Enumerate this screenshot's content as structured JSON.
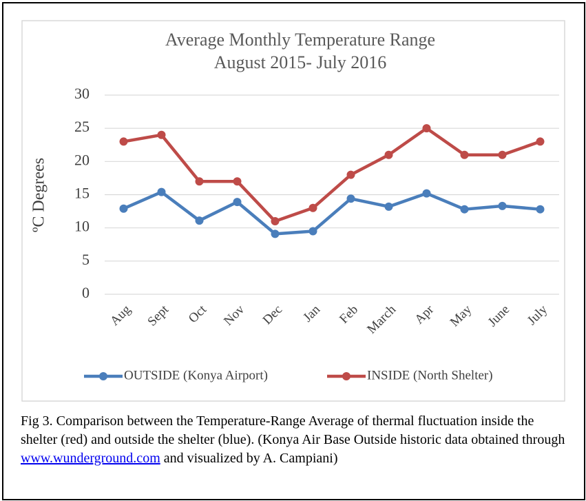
{
  "chart_data": {
    "type": "line",
    "title": [
      "Average Monthly Temperature Range",
      "August 2015- July 2016"
    ],
    "y_label": "ºC Degrees",
    "categories": [
      "Aug",
      "Sept",
      "Oct",
      "Nov",
      "Dec",
      "Jan",
      "Feb",
      "March",
      "Apr",
      "May",
      "June",
      "July"
    ],
    "series": [
      {
        "name": "OUTSIDE (Konya Airport)",
        "color": "#4a7ebb",
        "values": [
          12.9,
          15.4,
          11.1,
          13.9,
          9.1,
          9.5,
          14.4,
          13.2,
          15.2,
          12.8,
          13.3,
          12.8
        ]
      },
      {
        "name": "INSIDE (North Shelter)",
        "color": "#be4b48",
        "values": [
          23,
          24,
          17,
          17,
          11,
          13,
          18,
          21,
          25,
          21,
          21,
          23
        ]
      }
    ],
    "ylim": [
      0,
      30
    ],
    "yticks": [
      0,
      5,
      10,
      15,
      20,
      25,
      30
    ],
    "grid": true,
    "legend": "bottom"
  },
  "caption": {
    "before": "Fig 3. Comparison between the Temperature-Range Average of thermal fluctuation inside the shelter (red) and outside the shelter (blue). (Konya Air Base Outside historic data obtained through ",
    "link": "www.wunderground.com",
    "after": " and visualized by A. Campiani)"
  }
}
